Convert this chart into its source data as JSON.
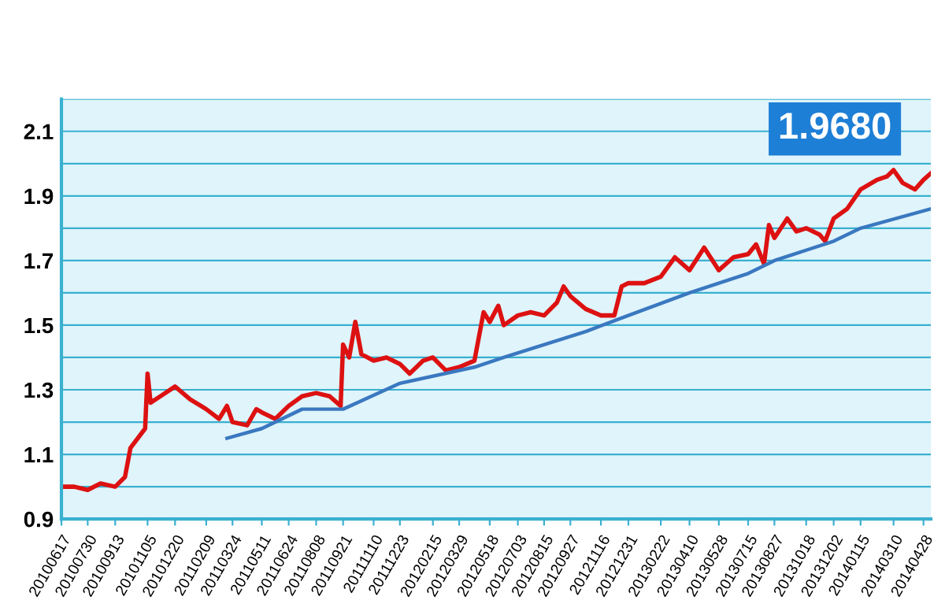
{
  "chart_data": {
    "type": "line",
    "annotations": [
      "1.9680"
    ],
    "grid": "y",
    "marker": "none",
    "line_style": "solid",
    "xlim": [
      "2010-06-17",
      "2014-05-10"
    ],
    "ylim": [
      0.9,
      2.2
    ],
    "yticks": [
      0.9,
      {
        "value": 1.0,
        "label": null
      },
      1.1,
      {
        "value": 1.2,
        "label": null
      },
      1.3,
      {
        "value": 1.4,
        "label": null
      },
      1.5,
      {
        "value": 1.6,
        "label": null
      },
      1.7,
      {
        "value": 1.8,
        "label": null
      },
      1.9,
      {
        "value": 2.0,
        "label": null
      },
      2.1,
      {
        "value": 2.2,
        "label": null
      }
    ],
    "xticks": [
      {
        "value": "2010-06-17",
        "label": "20100617"
      },
      {
        "value": "2010-07-30",
        "label": "20100730"
      },
      {
        "value": "2010-09-13",
        "label": "20100913"
      },
      {
        "value": "2010-11-05",
        "label": "20101105"
      },
      {
        "value": "2010-12-20",
        "label": "20101220"
      },
      {
        "value": "2011-02-09",
        "label": "20110209"
      },
      {
        "value": "2011-03-24",
        "label": "20110324"
      },
      {
        "value": "2011-05-11",
        "label": "20110511"
      },
      {
        "value": "2011-06-24",
        "label": "20110624"
      },
      {
        "value": "2011-08-08",
        "label": "20110808"
      },
      {
        "value": "2011-09-21",
        "label": "20110921"
      },
      {
        "value": "2011-11-10",
        "label": "20111110"
      },
      {
        "value": "2011-12-23",
        "label": "20111223"
      },
      {
        "value": "2012-02-15",
        "label": "20120215"
      },
      {
        "value": "2012-03-29",
        "label": "20120329"
      },
      {
        "value": "2012-05-18",
        "label": "20120518"
      },
      {
        "value": "2012-07-03",
        "label": "20120703"
      },
      {
        "value": "2012-08-15",
        "label": "20120815"
      },
      {
        "value": "2012-09-27",
        "label": "20120927"
      },
      {
        "value": "2012-11-16",
        "label": "20121116"
      },
      {
        "value": "2012-12-31",
        "label": "20121231"
      },
      {
        "value": "2013-02-22",
        "label": "20130222"
      },
      {
        "value": "2013-04-10",
        "label": "20130410"
      },
      {
        "value": "2013-05-28",
        "label": "20130528"
      },
      {
        "value": "2013-07-15",
        "label": "20130715"
      },
      {
        "value": "2013-08-27",
        "label": "20130827"
      },
      {
        "value": "2013-10-18",
        "label": "20131018"
      },
      {
        "value": "2013-12-02",
        "label": "20131202"
      },
      {
        "value": "2014-01-15",
        "label": "20140115"
      },
      {
        "value": "2014-03-10",
        "label": "20140310"
      },
      {
        "value": "2014-04-28",
        "label": "20140428"
      }
    ],
    "series": [
      {
        "color": "#dd1111",
        "x": [
          "2010-06-17",
          "2010-07-08",
          "2010-07-30",
          "2010-08-20",
          "2010-09-13",
          "2010-09-29",
          "2010-10-08",
          "2010-11-01",
          "2010-11-05",
          "2010-11-10",
          "2010-11-26",
          "2010-12-20",
          "2011-01-14",
          "2011-02-09",
          "2011-03-02",
          "2011-03-15",
          "2011-03-24",
          "2011-04-17",
          "2011-05-02",
          "2011-05-11",
          "2011-06-02",
          "2011-06-24",
          "2011-07-16",
          "2011-08-08",
          "2011-08-30",
          "2011-09-17",
          "2011-09-21",
          "2011-10-01",
          "2011-10-11",
          "2011-10-21",
          "2011-11-10",
          "2011-12-01",
          "2011-12-23",
          "2012-01-08",
          "2012-01-30",
          "2012-02-15",
          "2012-03-07",
          "2012-03-29",
          "2012-04-23",
          "2012-05-08",
          "2012-05-18",
          "2012-06-01",
          "2012-06-10",
          "2012-07-03",
          "2012-07-24",
          "2012-08-15",
          "2012-09-05",
          "2012-09-16",
          "2012-09-27",
          "2012-10-22",
          "2012-11-16",
          "2012-12-08",
          "2012-12-20",
          "2012-12-31",
          "2013-01-26",
          "2013-02-22",
          "2013-03-17",
          "2013-04-10",
          "2013-05-04",
          "2013-05-28",
          "2013-06-21",
          "2013-07-15",
          "2013-07-28",
          "2013-08-10",
          "2013-08-18",
          "2013-08-27",
          "2013-09-17",
          "2013-10-02",
          "2013-10-18",
          "2013-11-09",
          "2013-11-18",
          "2013-12-02",
          "2013-12-24",
          "2014-01-15",
          "2014-02-11",
          "2014-02-27",
          "2014-03-10",
          "2014-03-25",
          "2014-04-14",
          "2014-04-28",
          "2014-05-10"
        ],
        "values": [
          1.0,
          1.0,
          0.99,
          1.01,
          1.0,
          1.03,
          1.12,
          1.18,
          1.35,
          1.26,
          1.28,
          1.31,
          1.27,
          1.24,
          1.21,
          1.25,
          1.2,
          1.19,
          1.24,
          1.23,
          1.21,
          1.25,
          1.28,
          1.29,
          1.28,
          1.25,
          1.44,
          1.4,
          1.51,
          1.41,
          1.39,
          1.4,
          1.38,
          1.35,
          1.39,
          1.4,
          1.36,
          1.37,
          1.39,
          1.54,
          1.51,
          1.56,
          1.5,
          1.53,
          1.54,
          1.53,
          1.57,
          1.62,
          1.59,
          1.55,
          1.53,
          1.53,
          1.62,
          1.63,
          1.63,
          1.65,
          1.71,
          1.67,
          1.74,
          1.67,
          1.71,
          1.72,
          1.75,
          1.69,
          1.81,
          1.77,
          1.83,
          1.79,
          1.8,
          1.78,
          1.76,
          1.83,
          1.86,
          1.92,
          1.95,
          1.96,
          1.98,
          1.94,
          1.92,
          1.95,
          1.97
        ]
      },
      {
        "color": "#3a78c0",
        "x": [
          "2011-03-15",
          "2011-05-11",
          "2011-07-16",
          "2011-09-21",
          "2011-12-23",
          "2012-04-23",
          "2012-06-10",
          "2012-10-22",
          "2012-12-31",
          "2013-04-10",
          "2013-07-15",
          "2013-08-27",
          "2013-12-02",
          "2014-01-15",
          "2014-05-10"
        ],
        "values": [
          1.15,
          1.18,
          1.24,
          1.24,
          1.32,
          1.37,
          1.4,
          1.48,
          1.53,
          1.6,
          1.66,
          1.7,
          1.76,
          1.8,
          1.86
        ]
      }
    ]
  }
}
